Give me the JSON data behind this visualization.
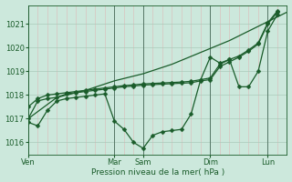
{
  "background_color": "#cce8dc",
  "grid_color_major": "#aacaba",
  "grid_color_minor": "#ddb8b8",
  "line_color": "#1a5c2a",
  "xlabel": "Pression niveau de la mer( hPa )",
  "ylim": [
    1015.5,
    1021.8
  ],
  "yticks": [
    1016,
    1017,
    1018,
    1019,
    1020,
    1021
  ],
  "day_labels": [
    "Ven",
    "Mar",
    "Sam",
    "Dim",
    "Lun"
  ],
  "day_x": [
    0,
    9,
    12,
    19,
    25
  ],
  "xlim": [
    0,
    27
  ],
  "line1_x": [
    0,
    3,
    6,
    9,
    12,
    15,
    18,
    21,
    24,
    27
  ],
  "line1_y": [
    1017.0,
    1017.9,
    1018.2,
    1018.6,
    1018.9,
    1019.3,
    1019.8,
    1020.3,
    1020.9,
    1021.5
  ],
  "line2_x": [
    0,
    1,
    2,
    3,
    4,
    5,
    6,
    7,
    8,
    9,
    10,
    11,
    12,
    13,
    14,
    15,
    16,
    17,
    18,
    19,
    20,
    21,
    22,
    23,
    24,
    25,
    26
  ],
  "line2_y": [
    1016.85,
    1016.7,
    1017.35,
    1017.75,
    1017.85,
    1017.9,
    1017.95,
    1018.0,
    1018.05,
    1016.9,
    1016.55,
    1016.0,
    1015.75,
    1016.3,
    1016.45,
    1016.5,
    1016.55,
    1017.2,
    1018.65,
    1019.6,
    1019.35,
    1019.5,
    1018.35,
    1018.35,
    1019.0,
    1020.7,
    1021.4
  ],
  "line3_x": [
    0,
    1,
    2,
    3,
    4,
    5,
    6,
    7,
    8,
    9,
    10,
    11,
    12,
    13,
    14,
    15,
    16,
    17,
    18,
    19,
    20,
    21,
    22,
    23,
    24,
    25,
    26
  ],
  "line3_y": [
    1017.0,
    1017.75,
    1017.85,
    1017.9,
    1018.05,
    1018.1,
    1018.15,
    1018.2,
    1018.25,
    1018.3,
    1018.35,
    1018.38,
    1018.42,
    1018.44,
    1018.46,
    1018.48,
    1018.5,
    1018.52,
    1018.6,
    1018.65,
    1019.2,
    1019.4,
    1019.6,
    1019.85,
    1020.15,
    1021.0,
    1021.5
  ],
  "line4_x": [
    0,
    1,
    2,
    3,
    4,
    5,
    6,
    7,
    8,
    9,
    10,
    11,
    12,
    13,
    14,
    15,
    16,
    17,
    18,
    19,
    20,
    21,
    22,
    23,
    24,
    25,
    26
  ],
  "line4_y": [
    1017.5,
    1017.85,
    1018.0,
    1018.05,
    1018.1,
    1018.15,
    1018.2,
    1018.25,
    1018.3,
    1018.35,
    1018.4,
    1018.43,
    1018.47,
    1018.49,
    1018.51,
    1018.53,
    1018.55,
    1018.58,
    1018.65,
    1018.72,
    1019.3,
    1019.5,
    1019.65,
    1019.9,
    1020.2,
    1021.05,
    1021.55
  ]
}
